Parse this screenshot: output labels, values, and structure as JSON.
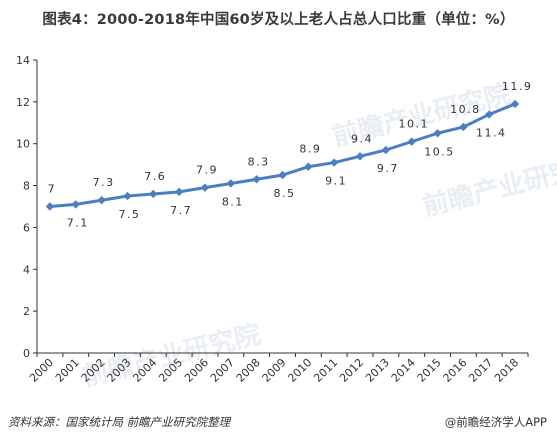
{
  "title": "图表4：2000-2018年中国60岁及以上老人占总人口比重（单位：%）",
  "footer": {
    "source": "资料来源：国家统计局  前瞻产业研究院整理",
    "brand": "@前瞻经济学人APP"
  },
  "watermark": {
    "text": "前瞻产业研究院"
  },
  "colors": {
    "line": "#4a7fc1",
    "marker": "#4a7fc1",
    "axis": "#333333"
  },
  "chart_data": {
    "type": "line",
    "x": [
      "2000",
      "2001",
      "2002",
      "2003",
      "2004",
      "2005",
      "2006",
      "2007",
      "2008",
      "2009",
      "2010",
      "2011",
      "2012",
      "2013",
      "2014",
      "2015",
      "2016",
      "2017",
      "2018"
    ],
    "series": [
      {
        "values": [
          7,
          7.1,
          7.3,
          7.5,
          7.6,
          7.7,
          7.9,
          8.1,
          8.3,
          8.5,
          8.9,
          9.1,
          9.4,
          9.7,
          10.1,
          10.5,
          10.8,
          11.4,
          11.9
        ]
      }
    ],
    "label_position": [
      "above",
      "below",
      "above",
      "below",
      "above",
      "below",
      "above",
      "below",
      "above",
      "below",
      "above",
      "below",
      "above",
      "below",
      "above",
      "below",
      "above",
      "below",
      "above"
    ],
    "ylim": [
      0,
      14
    ],
    "yticks": [
      0,
      2,
      4,
      6,
      8,
      10,
      12,
      14
    ],
    "xlabel": "",
    "ylabel": "",
    "grid": false,
    "legend": "none",
    "marker": "diamond"
  }
}
